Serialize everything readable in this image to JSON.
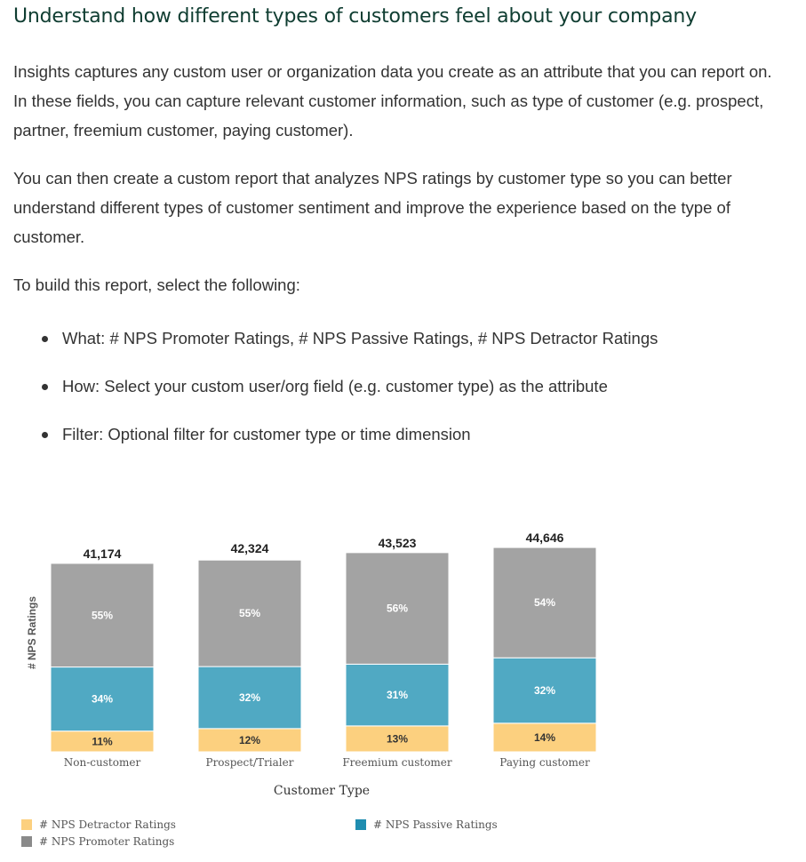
{
  "heading": "Understand how different types of customers feel about your company",
  "paragraphs": [
    "Insights captures any custom user or organization data you create as an attribute that you can report on. In these fields, you can capture relevant customer information, such as type of customer (e.g. prospect, partner, freemium customer, paying customer).",
    "You can then create a custom report that analyzes NPS ratings by customer type so you can better understand different types of customer sentiment and improve the experience based on the type of customer.",
    "To build this report, select the following:"
  ],
  "bullets": [
    "What: # NPS Promoter Ratings, # NPS Passive Ratings, # NPS Detractor Ratings",
    "How: Select your custom user/org field (e.g. customer type) as the attribute",
    "Filter: Optional filter for customer type or time dimension"
  ],
  "colors": {
    "heading": "#0f3d31",
    "detractor": "#fcd07f",
    "passive": "#50a9c3",
    "promoter": "#a3a3a3"
  },
  "chart_data": {
    "type": "bar",
    "stacked": true,
    "title": "",
    "xlabel": "Customer Type",
    "ylabel": "# NPS Ratings",
    "categories": [
      "Non-customer",
      "Prospect/Trialer",
      "Freemium customer",
      "Paying customer"
    ],
    "totals": [
      41174,
      42324,
      43523,
      44646
    ],
    "total_labels": [
      "41,174",
      "42,324",
      "43,523",
      "44,646"
    ],
    "series": [
      {
        "name": "# NPS Detractor Ratings",
        "percent": [
          11,
          12,
          13,
          14
        ],
        "labels": [
          "11%",
          "12%",
          "13%",
          "14%"
        ],
        "color": "#fcd07f"
      },
      {
        "name": "# NPS Passive Ratings",
        "percent": [
          34,
          32,
          31,
          32
        ],
        "labels": [
          "34%",
          "32%",
          "31%",
          "32%"
        ],
        "color": "#50a9c3"
      },
      {
        "name": "# NPS Promoter Ratings",
        "percent": [
          55,
          55,
          56,
          54
        ],
        "labels": [
          "55%",
          "55%",
          "56%",
          "54%"
        ],
        "color": "#a3a3a3"
      }
    ],
    "legend": "bottom"
  }
}
